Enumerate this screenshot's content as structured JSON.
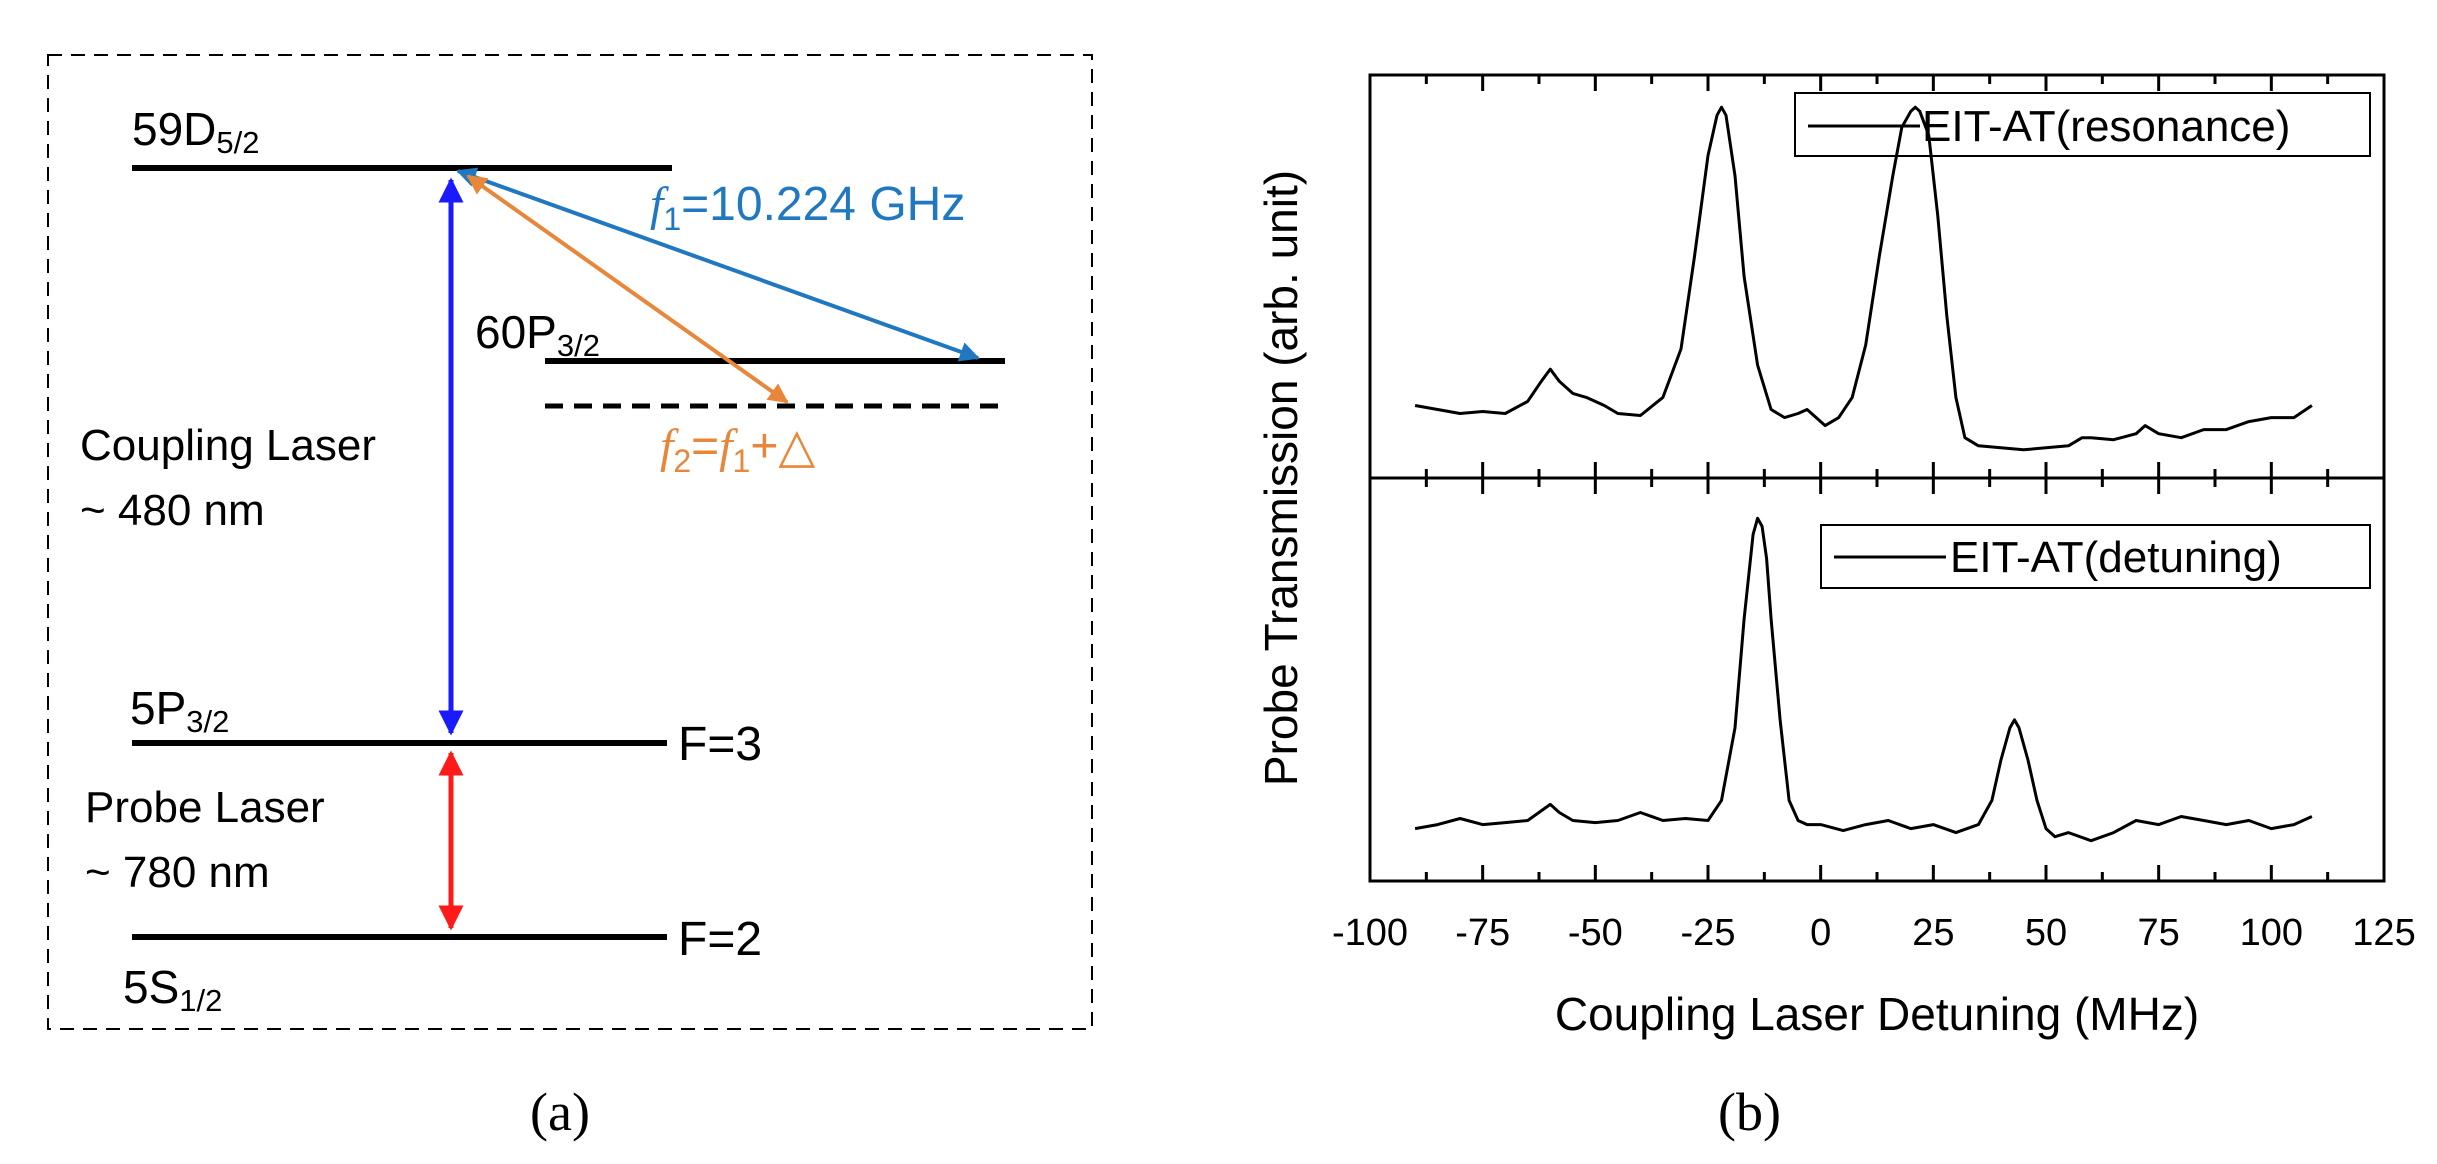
{
  "panel_a": {
    "caption": "(a)",
    "levels": {
      "d59": {
        "base": "59D",
        "sub": "5/2"
      },
      "p60": {
        "base": "60P",
        "sub": "3/2"
      },
      "p5": {
        "base": "5P",
        "sub": "3/2",
        "hyperfine": "F=3"
      },
      "s5": {
        "base": "5S",
        "sub": "1/2",
        "hyperfine": "F=2"
      }
    },
    "coupling_laser": {
      "name": "Coupling Laser",
      "wavelength": "~ 480 nm"
    },
    "probe_laser": {
      "name": "Probe Laser",
      "wavelength": "~ 780 nm"
    },
    "f1_label": {
      "sym": "f",
      "sub": "1",
      "rest": "=10.224 GHz"
    },
    "f2_label": {
      "sym": "f",
      "sub": "2",
      "eq": "=",
      "sym2": "f",
      "sub2": "1",
      "rest": "+△"
    },
    "colors": {
      "coupling": "#1a1aff",
      "probe": "#ff1a1a",
      "f1": "#1f78c0",
      "f2": "#e8863a"
    }
  },
  "panel_b": {
    "caption": "(b)"
  },
  "chart_data": {
    "type": "line",
    "xlabel": "Coupling Laser Detuning (MHz)",
    "ylabel": "Probe Transmission (arb. unit)",
    "xlim": [
      -100,
      125
    ],
    "xticks": [
      -100,
      -75,
      -50,
      -25,
      0,
      25,
      50,
      75,
      100,
      125
    ],
    "yunit": "arb. unit (normalized 0-1)",
    "panels": [
      {
        "legend": "EIT-AT(resonance)",
        "legend_position": "top-right",
        "series": [
          {
            "name": "EIT-AT(resonance)",
            "x": [
              -90,
              -85,
              -80,
              -75,
              -70,
              -65,
              -62,
              -60,
              -58,
              -55,
              -52,
              -48,
              -45,
              -40,
              -35,
              -31,
              -28,
              -25,
              -23,
              -22,
              -21,
              -19,
              -17,
              -14,
              -11,
              -8,
              -5,
              -3,
              -1,
              1,
              4,
              7,
              10,
              13,
              16,
              18,
              20,
              21,
              22,
              24,
              26,
              28,
              30,
              32,
              35,
              40,
              45,
              50,
              55,
              58,
              60,
              65,
              70,
              72,
              75,
              80,
              85,
              90,
              95,
              100,
              105,
              109
            ],
            "y": [
              0.18,
              0.17,
              0.16,
              0.165,
              0.16,
              0.19,
              0.24,
              0.27,
              0.24,
              0.21,
              0.2,
              0.18,
              0.16,
              0.155,
              0.2,
              0.32,
              0.55,
              0.8,
              0.9,
              0.92,
              0.9,
              0.75,
              0.5,
              0.28,
              0.17,
              0.15,
              0.16,
              0.17,
              0.15,
              0.13,
              0.15,
              0.2,
              0.33,
              0.55,
              0.75,
              0.87,
              0.91,
              0.92,
              0.91,
              0.85,
              0.65,
              0.4,
              0.2,
              0.1,
              0.08,
              0.075,
              0.07,
              0.075,
              0.08,
              0.1,
              0.1,
              0.095,
              0.11,
              0.13,
              0.11,
              0.1,
              0.12,
              0.12,
              0.14,
              0.15,
              0.15,
              0.18
            ]
          }
        ]
      },
      {
        "legend": "EIT-AT(detuning)",
        "legend_position": "top-right",
        "series": [
          {
            "name": "EIT-AT(detuning)",
            "x": [
              -90,
              -85,
              -80,
              -75,
              -70,
              -65,
              -60,
              -58,
              -55,
              -50,
              -45,
              -40,
              -35,
              -30,
              -25,
              -22,
              -19,
              -17,
              -15,
              -14,
              -13,
              -12,
              -11,
              -9,
              -7,
              -5,
              -3,
              0,
              5,
              10,
              15,
              20,
              25,
              30,
              35,
              38,
              40,
              42,
              43,
              44,
              46,
              48,
              50,
              52,
              55,
              60,
              65,
              70,
              75,
              80,
              85,
              90,
              95,
              100,
              105,
              109
            ],
            "y": [
              0.13,
              0.14,
              0.155,
              0.14,
              0.145,
              0.15,
              0.19,
              0.17,
              0.15,
              0.145,
              0.15,
              0.17,
              0.15,
              0.155,
              0.15,
              0.2,
              0.38,
              0.65,
              0.86,
              0.9,
              0.88,
              0.8,
              0.65,
              0.4,
              0.2,
              0.15,
              0.14,
              0.14,
              0.125,
              0.14,
              0.15,
              0.13,
              0.14,
              0.12,
              0.14,
              0.2,
              0.3,
              0.38,
              0.4,
              0.38,
              0.3,
              0.2,
              0.13,
              0.11,
              0.12,
              0.1,
              0.12,
              0.15,
              0.14,
              0.16,
              0.15,
              0.14,
              0.15,
              0.13,
              0.14,
              0.16
            ]
          }
        ]
      }
    ]
  }
}
